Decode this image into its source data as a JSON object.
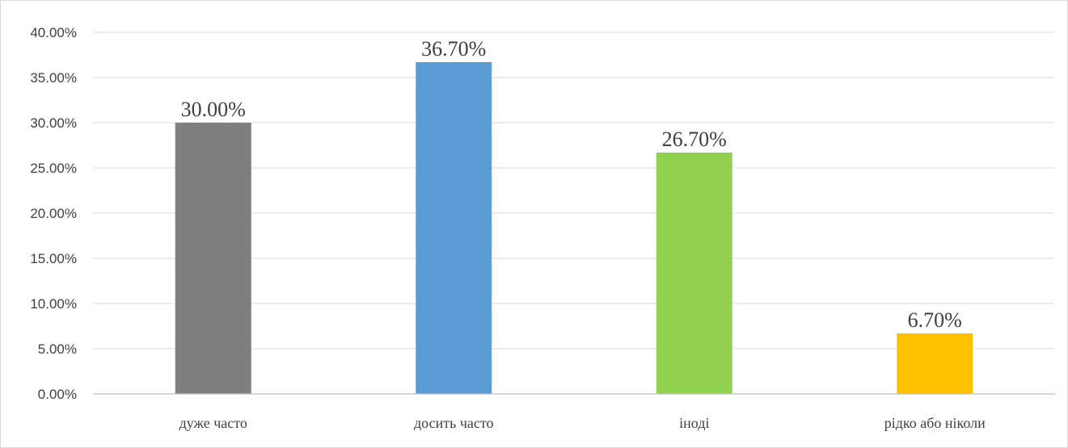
{
  "chart_data": {
    "type": "bar",
    "title": "",
    "xlabel": "",
    "ylabel": "",
    "categories": [
      "дуже часто",
      "досить часто",
      "іноді",
      "рідко або ніколи"
    ],
    "values": [
      30.0,
      36.7,
      26.7,
      6.7
    ],
    "value_labels": [
      "30.00%",
      "36.70%",
      "26.70%",
      "6.70%"
    ],
    "colors": [
      "#7f7f7f",
      "#5b9bd5",
      "#92d050",
      "#ffc000"
    ],
    "ylim": [
      0,
      40
    ],
    "yticks": [
      0,
      5,
      10,
      15,
      20,
      25,
      30,
      35,
      40
    ],
    "ytick_labels": [
      "0.00%",
      "5.00%",
      "10.00%",
      "15.00%",
      "20.00%",
      "25.00%",
      "30.00%",
      "35.00%",
      "40.00%"
    ],
    "grid": true,
    "legend": "none"
  }
}
